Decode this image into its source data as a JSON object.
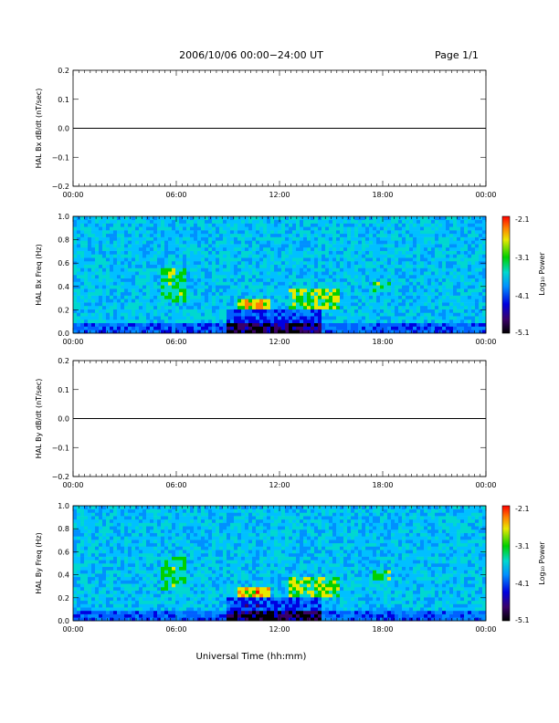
{
  "header": {
    "title": "2006/10/06  00:00−24:00 UT",
    "page": "Page 1/1"
  },
  "footer": {
    "xlabel": "Universal Time (hh:mm)"
  },
  "colorbar": {
    "label": "Log₁₀ Power",
    "ticks": [
      "-2.1",
      "-3.1",
      "-4.1",
      "-5.1"
    ]
  },
  "chart_data": [
    {
      "type": "line",
      "ylabel": "HAL Bx dB/dt (nT/sec)",
      "xlim": [
        0,
        24
      ],
      "ylim": [
        -0.2,
        0.2
      ],
      "ytick_labels": [
        "0.2",
        "0.1",
        "0.0",
        "−0.1",
        "−0.2"
      ],
      "xtick_labels": [
        "00:00",
        "06:00",
        "12:00",
        "18:00",
        "00:00"
      ],
      "series": [
        {
          "values_note_free": true,
          "x": [
            0,
            24
          ],
          "y": [
            0,
            0
          ]
        }
      ]
    },
    {
      "type": "heatmap",
      "ylabel": "HAL Bx Freq (Hz)",
      "xlim": [
        0,
        24
      ],
      "ylim": [
        0,
        1.0
      ],
      "ytick_labels": [
        "1.0",
        "0.8",
        "0.6",
        "0.4",
        "0.2",
        "0.0"
      ],
      "xtick_labels": [
        "00:00",
        "06:00",
        "12:00",
        "18:00",
        "00:00"
      ],
      "zlim": [
        -5.1,
        -2.1
      ]
    },
    {
      "type": "line",
      "ylabel": "HAL By dB/dt (nT/sec)",
      "xlim": [
        0,
        24
      ],
      "ylim": [
        -0.2,
        0.2
      ],
      "ytick_labels": [
        "0.2",
        "0.1",
        "0.0",
        "−0.1",
        "−0.2"
      ],
      "xtick_labels": [
        "00:00",
        "06:00",
        "12:00",
        "18:00",
        "00:00"
      ],
      "series": [
        {
          "x": [
            0,
            24
          ],
          "y": [
            0,
            0
          ]
        }
      ]
    },
    {
      "type": "heatmap",
      "ylabel": "HAL By Freq (Hz)",
      "xlim": [
        0,
        24
      ],
      "ylim": [
        0,
        1.0
      ],
      "ytick_labels": [
        "1.0",
        "0.8",
        "0.6",
        "0.4",
        "0.2",
        "0.0"
      ],
      "xtick_labels": [
        "00:00",
        "06:00",
        "12:00",
        "18:00",
        "00:00"
      ],
      "zlim": [
        -5.1,
        -2.1
      ]
    }
  ]
}
